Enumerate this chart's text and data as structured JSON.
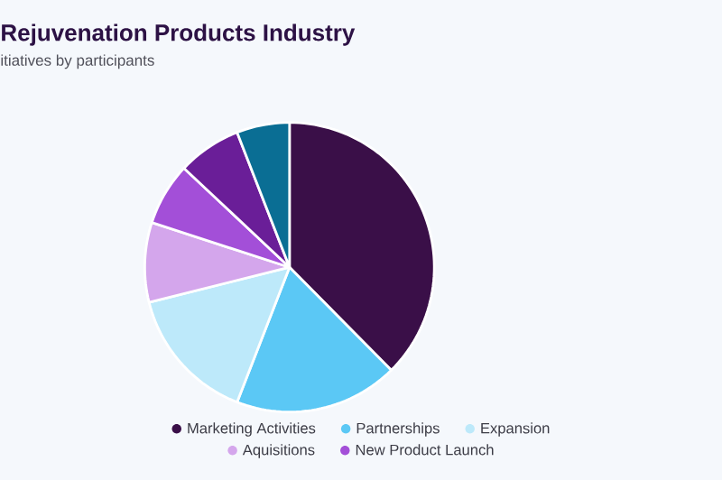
{
  "chart_data": {
    "type": "pie",
    "title": "Rejuvenation Products Industry",
    "subtitle": "itiatives by participants",
    "categories": [
      "Marketing Activities",
      "Partnerships",
      "Expansion",
      "Aquisitions",
      "New Product Launch",
      null,
      null
    ],
    "values": [
      37.6,
      18.3,
      15.2,
      8.9,
      7.0,
      7.1,
      5.9
    ],
    "colors": [
      "#3a0f48",
      "#5bc8f5",
      "#bde9fa",
      "#d4a6ec",
      "#a34fd8",
      "#6a1e98",
      "#0a6e94"
    ],
    "legend": "bottom"
  }
}
